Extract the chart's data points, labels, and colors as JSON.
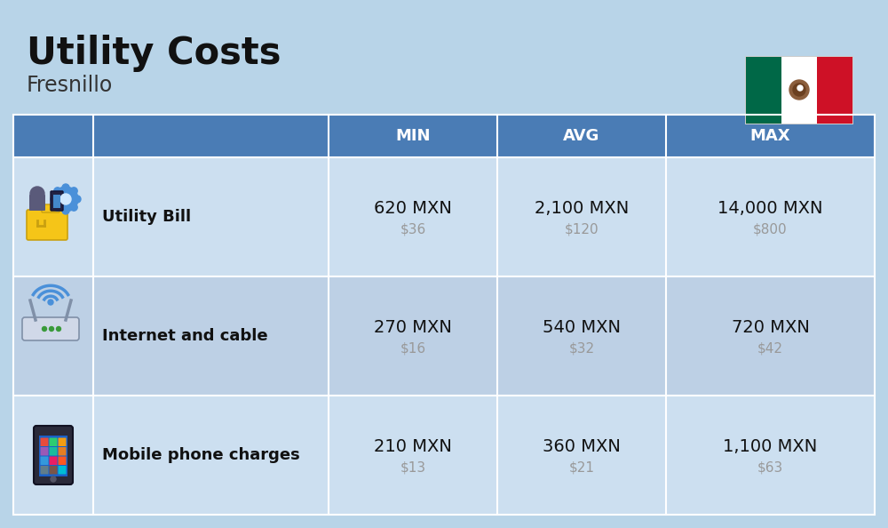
{
  "title": "Utility Costs",
  "subtitle": "Fresnillo",
  "bg_color": "#b8d4e8",
  "header_bg": "#4a7cb5",
  "header_text_color": "#ffffff",
  "row_bg_even": "#ccdff0",
  "row_bg_odd": "#bdd0e5",
  "header_labels": [
    "MIN",
    "AVG",
    "MAX"
  ],
  "rows": [
    {
      "label": "Utility Bill",
      "icon": "⚡",
      "min_mxn": "620 MXN",
      "min_usd": "$36",
      "avg_mxn": "2,100 MXN",
      "avg_usd": "$120",
      "max_mxn": "14,000 MXN",
      "max_usd": "$800"
    },
    {
      "label": "Internet and cable",
      "icon": "📡",
      "min_mxn": "270 MXN",
      "min_usd": "$16",
      "avg_mxn": "540 MXN",
      "avg_usd": "$32",
      "max_mxn": "720 MXN",
      "max_usd": "$42"
    },
    {
      "label": "Mobile phone charges",
      "icon": "📱",
      "min_mxn": "210 MXN",
      "min_usd": "$13",
      "avg_mxn": "360 MXN",
      "avg_usd": "$21",
      "max_mxn": "1,100 MXN",
      "max_usd": "$63"
    }
  ],
  "title_fontsize": 30,
  "subtitle_fontsize": 17,
  "header_fontsize": 13,
  "label_fontsize": 13,
  "value_fontsize": 14,
  "usd_fontsize": 11,
  "usd_color": "#999999",
  "label_color": "#111111",
  "value_color": "#111111",
  "flag_green": "#006847",
  "flag_white": "#ffffff",
  "flag_red": "#ce1126"
}
